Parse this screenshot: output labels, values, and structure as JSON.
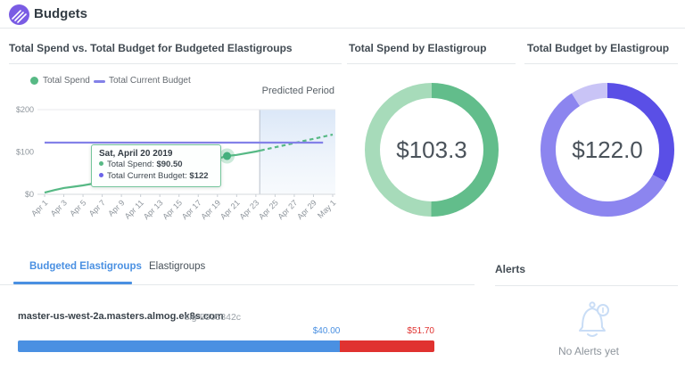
{
  "colors": {
    "logo": "#7a5ce4",
    "accent_blue": "#4a90e2",
    "bar_over_red": "#e03230",
    "spend_green": "#57b985",
    "budget_purple": "#8381e8"
  },
  "header": {
    "title": "Budgets"
  },
  "left_panel": {
    "title": "Total Spend vs. Total Budget for Budgeted Elastigroups",
    "predicted_label": "Predicted Period",
    "legend": [
      {
        "label": "Total Spend",
        "color": "#57b985"
      },
      {
        "label": "Total Current Budget",
        "color": "#8381e8"
      }
    ],
    "tooltip": {
      "title": "Sat, April 20 2019",
      "items": [
        {
          "label": "Total Spend:",
          "value": "$90.50",
          "bullet": "#57b985"
        },
        {
          "label": "Total Current Budget:",
          "value": "$122",
          "bullet": "#6b63e8"
        }
      ]
    }
  },
  "chart_data": [
    {
      "type": "line",
      "title": "Total Spend vs. Total Budget for Budgeted Elastigroups",
      "xlabel": "",
      "ylabel": "",
      "ylim": [
        0,
        200
      ],
      "y_ticks": [
        {
          "v": 0,
          "label": "$0"
        },
        {
          "v": 100,
          "label": "$100"
        },
        {
          "v": 200,
          "label": "$200"
        }
      ],
      "x_ticks": [
        {
          "day": 1,
          "label": "Apr 1"
        },
        {
          "day": 3,
          "label": "Apr 3"
        },
        {
          "day": 5,
          "label": "Apr 5"
        },
        {
          "day": 7,
          "label": "Apr 7"
        },
        {
          "day": 9,
          "label": "Apr 9"
        },
        {
          "day": 11,
          "label": "Apr 11"
        },
        {
          "day": 13,
          "label": "Apr 13"
        },
        {
          "day": 15,
          "label": "Apr 15"
        },
        {
          "day": 17,
          "label": "Apr 17"
        },
        {
          "day": 19,
          "label": "Apr 19"
        },
        {
          "day": 21,
          "label": "Apr 21"
        },
        {
          "day": 23,
          "label": "Apr 23"
        },
        {
          "day": 25,
          "label": "Apr 25"
        },
        {
          "day": 27,
          "label": "Apr 27"
        },
        {
          "day": 29,
          "label": "Apr 29"
        },
        {
          "day": 31,
          "label": "May 1"
        }
      ],
      "predicted_start_day": 23.4,
      "predicted_label": "Predicted Period",
      "series": [
        {
          "name": "Total Spend",
          "color": "#57b985",
          "style": "solid",
          "points": [
            [
              1,
              4
            ],
            [
              2,
              10
            ],
            [
              3,
              15
            ],
            [
              4,
              18
            ],
            [
              5,
              21
            ],
            [
              7,
              29
            ],
            [
              9,
              38
            ],
            [
              11,
              46
            ],
            [
              13,
              55
            ],
            [
              15,
              65
            ],
            [
              17,
              74
            ],
            [
              19,
              84
            ],
            [
              20,
              90.5
            ],
            [
              21,
              93
            ],
            [
              23,
              101
            ],
            [
              23.5,
              103.5
            ]
          ]
        },
        {
          "name": "Total Spend (predicted)",
          "color": "#57b985",
          "style": "dashed",
          "points": [
            [
              23.5,
              103.5
            ],
            [
              31,
              141
            ]
          ]
        },
        {
          "name": "Total Current Budget",
          "color": "#8381e8",
          "style": "solid",
          "points": [
            [
              1,
              122
            ],
            [
              30,
              122
            ]
          ]
        }
      ],
      "marker": {
        "day": 20,
        "value": 90.5,
        "series": "Total Spend"
      }
    },
    {
      "type": "donut",
      "title": "Total Spend by Elastigroup",
      "center_label": "$103.3",
      "segments": [
        {
          "pct": 50.1,
          "color": "#62bd8b"
        },
        {
          "pct": 49.9,
          "color": "#a7dbba"
        }
      ]
    },
    {
      "type": "donut",
      "title": "Total Budget by Elastigroup",
      "center_label": "$122.0",
      "segments": [
        {
          "pct": 33,
          "color": "#5a4fe6"
        },
        {
          "pct": 58,
          "color": "#8c85ef"
        },
        {
          "pct": 9,
          "color": "#c9c4f6"
        }
      ]
    }
  ],
  "tabs": [
    {
      "label": "Budgeted Elastigroups",
      "active": true
    },
    {
      "label": "Elastigroups",
      "active": false
    }
  ],
  "elastigroup_row": {
    "name": "master-us-west-2a.masters.almog.ek8s.com",
    "sig": "sig-5505342c",
    "spent_label": "$40.00",
    "total_label": "$51.70",
    "spent_value": 40.0,
    "total_value": 51.7
  },
  "alerts": {
    "title": "Alerts",
    "empty_text": "No Alerts yet"
  }
}
